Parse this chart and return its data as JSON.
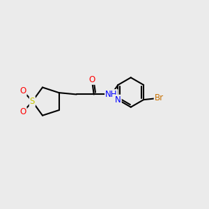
{
  "background_color": "#ebebeb",
  "atoms": {
    "S": {
      "color": "#c8c800"
    },
    "O": {
      "color": "#ff0000"
    },
    "N": {
      "color": "#0000ff"
    },
    "Br": {
      "color": "#c87000"
    },
    "C": {
      "color": "#000000"
    }
  },
  "figsize": [
    3.0,
    3.0
  ],
  "dpi": 100,
  "lw": 1.5,
  "fs": 8.5
}
